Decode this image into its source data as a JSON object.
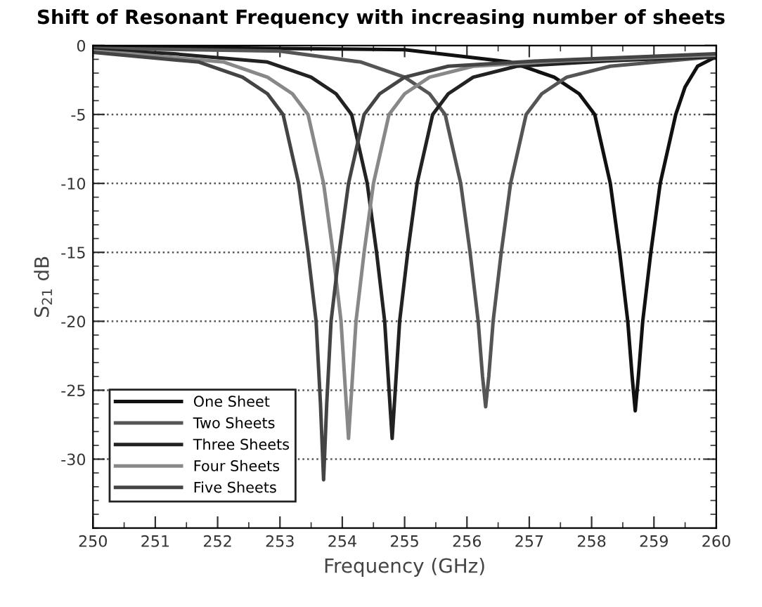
{
  "chart_data": {
    "type": "line",
    "title": "Shift of Resonant Frequency with increasing number of sheets",
    "xlabel": "Frequency (GHz)",
    "ylabel": "S$_{21}$ dB",
    "xlim": [
      250,
      260
    ],
    "xticks": [
      250,
      251,
      252,
      253,
      254,
      255,
      256,
      257,
      258,
      259,
      260
    ],
    "ylim": [
      -35,
      0
    ],
    "yticks": [
      -30,
      -25,
      -20,
      -15,
      -10,
      -5,
      0
    ],
    "grid": "y",
    "legend": "bottom left",
    "marker": "none",
    "line_style": "solid",
    "series": [
      {
        "name": "One Sheet",
        "color": "#111111",
        "x": [
          250,
          255,
          256.7,
          257.4,
          257.8,
          258.05,
          258.3,
          258.45,
          258.58,
          258.65,
          258.7,
          258.75,
          258.82,
          258.95,
          259.1,
          259.35,
          259.5,
          259.7,
          260
        ],
        "values": [
          -0.1,
          -0.3,
          -1.2,
          -2.3,
          -3.5,
          -5,
          -10,
          -15,
          -20,
          -24,
          -26.5,
          -24,
          -20,
          -15,
          -10,
          -5,
          -3,
          -1.5,
          -0.8
        ]
      },
      {
        "name": "Two Sheets",
        "color": "#555555",
        "x": [
          250,
          253,
          254.3,
          255,
          255.4,
          255.65,
          255.9,
          256.05,
          256.18,
          256.25,
          256.3,
          256.35,
          256.42,
          256.55,
          256.7,
          256.95,
          257.2,
          257.6,
          258.3,
          260
        ],
        "values": [
          -0.2,
          -0.4,
          -1.2,
          -2.3,
          -3.5,
          -5,
          -10,
          -15,
          -20,
          -24,
          -26.2,
          -24,
          -20,
          -15,
          -10,
          -5,
          -3.5,
          -2.3,
          -1.5,
          -0.8
        ]
      },
      {
        "name": "Three Sheets",
        "color": "#222222",
        "x": [
          250,
          251.3,
          252.8,
          253.5,
          253.9,
          254.15,
          254.4,
          254.55,
          254.68,
          254.75,
          254.8,
          254.85,
          254.92,
          255.05,
          255.2,
          255.45,
          255.7,
          256.1,
          256.8,
          258.3,
          260
        ],
        "values": [
          -0.3,
          -0.6,
          -1.2,
          -2.3,
          -3.5,
          -5,
          -10,
          -15,
          -20,
          -25,
          -28.5,
          -25,
          -20,
          -15,
          -10,
          -5,
          -3.5,
          -2.3,
          -1.5,
          -1.1,
          -0.8
        ]
      },
      {
        "name": "Four Sheets",
        "color": "#888888",
        "x": [
          250,
          250.6,
          252.1,
          252.8,
          253.2,
          253.45,
          253.7,
          253.85,
          253.98,
          254.05,
          254.1,
          254.15,
          254.22,
          254.35,
          254.5,
          254.75,
          255,
          255.4,
          256.1,
          257.6,
          260
        ],
        "values": [
          -0.4,
          -0.6,
          -1.2,
          -2.3,
          -3.5,
          -5,
          -10,
          -15,
          -20,
          -25,
          -28.5,
          -25,
          -20,
          -15,
          -10,
          -5,
          -3.5,
          -2.3,
          -1.5,
          -1.1,
          -0.7
        ]
      },
      {
        "name": "Five Sheets",
        "color": "#444444",
        "x": [
          250,
          251.7,
          252.4,
          252.8,
          253.05,
          253.3,
          253.45,
          253.58,
          253.65,
          253.7,
          253.75,
          253.82,
          253.95,
          254.1,
          254.35,
          254.6,
          255,
          255.7,
          257.2,
          260
        ],
        "values": [
          -0.5,
          -1.2,
          -2.3,
          -3.5,
          -5,
          -10,
          -15,
          -20,
          -26,
          -31.5,
          -26,
          -20,
          -15,
          -10,
          -5,
          -3.5,
          -2.3,
          -1.5,
          -1.1,
          -0.6
        ]
      }
    ]
  }
}
